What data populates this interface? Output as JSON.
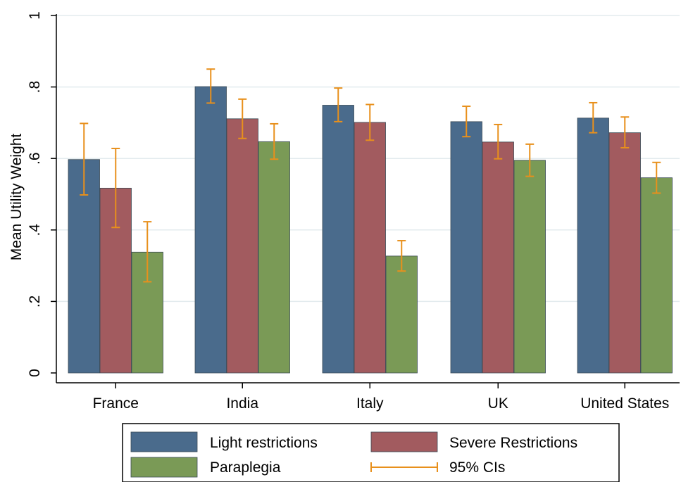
{
  "chart_data": {
    "type": "bar",
    "categories": [
      "France",
      "India",
      "Italy",
      "UK",
      "United States"
    ],
    "series": [
      {
        "name": "Light restrictions",
        "color": "#4a6b8c",
        "values": [
          0.597,
          0.801,
          0.749,
          0.703,
          0.713
        ],
        "ci_low": [
          0.498,
          0.755,
          0.703,
          0.661,
          0.672
        ],
        "ci_high": [
          0.698,
          0.85,
          0.797,
          0.746,
          0.756
        ]
      },
      {
        "name": "Severe Restrictions",
        "color": "#a25b5f",
        "values": [
          0.517,
          0.711,
          0.701,
          0.646,
          0.672
        ],
        "ci_low": [
          0.407,
          0.656,
          0.651,
          0.599,
          0.63
        ],
        "ci_high": [
          0.628,
          0.766,
          0.751,
          0.695,
          0.716
        ]
      },
      {
        "name": "Paraplegia",
        "color": "#7a9a56",
        "values": [
          0.338,
          0.647,
          0.327,
          0.595,
          0.546
        ],
        "ci_low": [
          0.255,
          0.598,
          0.285,
          0.55,
          0.503
        ],
        "ci_high": [
          0.423,
          0.697,
          0.37,
          0.64,
          0.589
        ]
      }
    ],
    "ci": {
      "label": "95% CIs",
      "color": "#e8901c"
    },
    "ylabel": "Mean Utility Weight",
    "xlabel": "",
    "title": "",
    "ylim": [
      0,
      1
    ],
    "yticks": [
      0,
      0.2,
      0.4,
      0.6,
      0.8,
      1
    ],
    "ytick_labels": [
      "0",
      ".2",
      ".4",
      ".6",
      ".8",
      "1"
    ],
    "grid": true,
    "legend_position": "bottom"
  }
}
